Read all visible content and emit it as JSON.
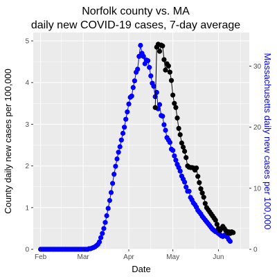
{
  "chart_data": {
    "type": "scatter",
    "title_lines": [
      "Norfolk county vs. MA",
      "daily new COVID-19 cases, 7-day average"
    ],
    "xlabel": "Date",
    "ylabel_left": "County daily new cases per 100,000",
    "ylabel_right": "Massachusetts daily new cases per 100,000",
    "x_ticks": [
      "Feb",
      "Mar",
      "Apr",
      "May",
      "Jun"
    ],
    "y_left_ticks": [
      "0",
      "1",
      "2",
      "3",
      "4",
      "5"
    ],
    "y_right_ticks": [
      "0",
      "10",
      "20",
      "30"
    ],
    "y_left_range": [
      0,
      5.2
    ],
    "y_right_range": [
      0,
      35.5
    ],
    "x_range_days": [
      "2020-01-27",
      "2020-06-22"
    ],
    "grid": true,
    "colors": {
      "panel": "#ebebeb",
      "grid_major": "#ffffff",
      "county": "#000000",
      "state": "#0000ff"
    },
    "series": [
      {
        "name": "",
        "axis": "left",
        "color": "#000000",
        "start_date": "2020-04-19",
        "values": [
          3.4,
          4.85,
          4.92,
          4.75,
          4.9,
          4.88,
          4.55,
          4.3,
          4.45,
          4.4,
          4.25,
          4.05,
          3.7,
          3.5,
          3.4,
          3.15,
          2.9,
          2.75,
          2.55,
          2.45,
          2.35,
          2.2,
          2.0,
          1.97,
          1.96,
          1.96,
          1.95,
          1.9,
          1.95,
          1.75,
          1.6,
          1.45,
          1.35,
          1.25,
          1.1,
          1.0,
          0.95,
          0.9,
          0.85,
          0.8,
          0.75,
          0.7,
          0.6,
          0.5,
          0.45,
          0.5,
          0.55,
          0.5,
          0.45,
          0.4,
          0.42,
          0.38,
          0.42,
          0.4
        ]
      },
      {
        "name": "",
        "axis": "right",
        "color": "#0000ff",
        "start_date": "2020-02-01",
        "values": [
          0.0,
          0.0,
          0.0,
          0.0,
          0.0,
          0.0,
          0.0,
          0.0,
          0.0,
          0.0,
          0.0,
          0.0,
          0.0,
          0.0,
          0.0,
          0.0,
          0.0,
          0.0,
          0.0,
          0.0,
          0.0,
          0.0,
          0.0,
          0.0,
          0.0,
          0.0,
          0.0,
          0.0,
          0.0,
          0.0,
          0.0,
          0.0,
          0.0,
          0.1,
          0.1,
          0.2,
          0.3,
          0.4,
          0.6,
          0.8,
          1.2,
          1.9,
          2.6,
          3.4,
          4.4,
          5.5,
          6.7,
          8.0,
          9.3,
          10.8,
          12.3,
          13.6,
          14.8,
          15.9,
          16.8,
          17.9,
          19.0,
          20.0,
          21.3,
          22.5,
          23.8,
          24.9,
          25.1,
          26.5,
          27.6,
          29.0,
          29.5,
          31.6,
          33.4,
          32.1,
          31.6,
          30.4,
          31.0,
          30.9,
          29.8,
          28.4,
          27.2,
          26.7,
          25.0,
          25.7,
          23.0,
          23.7,
          21.9,
          21.8,
          20.4,
          19.5,
          18.3,
          17.9,
          17.5,
          16.4,
          16.2,
          15.3,
          14.6,
          13.9,
          13.4,
          12.8,
          12.0,
          11.5,
          11.0,
          10.2,
          9.5,
          9.5,
          8.5,
          8.1,
          7.6,
          7.3,
          6.9,
          6.4,
          6.1,
          5.8,
          5.4,
          5.1,
          4.8,
          4.5,
          4.2,
          3.9,
          3.6,
          3.3,
          3.1,
          2.9,
          2.8,
          2.6,
          2.4,
          2.2,
          2.1,
          2.3,
          2.2,
          2.0,
          1.6,
          1.3
        ]
      }
    ]
  }
}
